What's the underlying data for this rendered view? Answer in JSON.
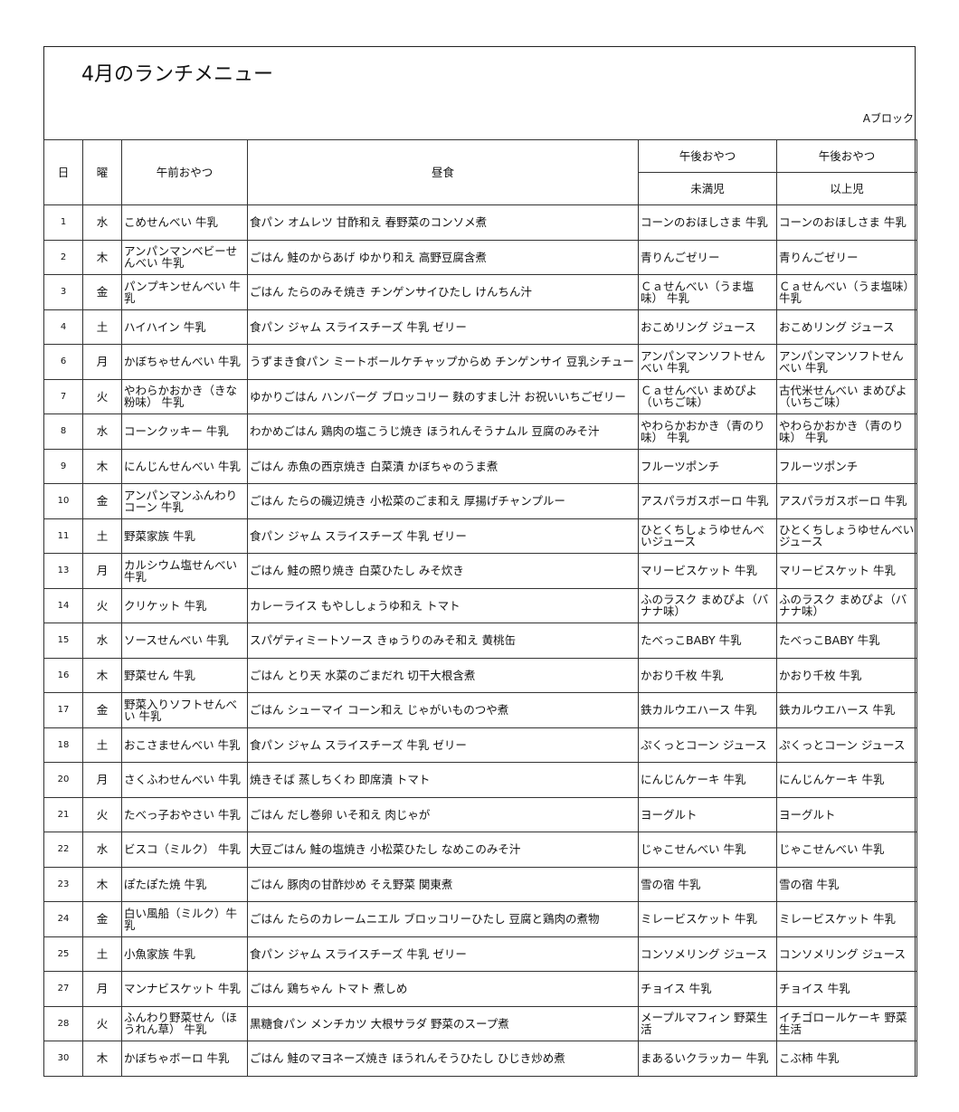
{
  "title": "4月のランチメニュー",
  "block": "Aブロック",
  "headers": {
    "day": "日",
    "weekday": "曜",
    "morning_snack": "午前おやつ",
    "lunch": "昼食",
    "afternoon_snack_1": "午後おやつ",
    "afternoon_snack_1_sub": "未満児",
    "afternoon_snack_2": "午後おやつ",
    "afternoon_snack_2_sub": "以上児"
  },
  "rows": [
    {
      "day": "1",
      "wd": "水",
      "am": "こめせんべい 牛乳",
      "lunch": "食パン オムレツ 甘酢和え 春野菜のコンソメ煮",
      "pm1": "コーンのおほしさま 牛乳",
      "pm2": "コーンのおほしさま 牛乳"
    },
    {
      "day": "2",
      "wd": "木",
      "am": "アンパンマンベビーせんべい 牛乳",
      "lunch": "ごはん 鮭のからあげ ゆかり和え 高野豆腐含煮",
      "pm1": "青りんごゼリー",
      "pm2": "青りんごゼリー"
    },
    {
      "day": "3",
      "wd": "金",
      "am": "パンプキンせんべい 牛乳",
      "lunch": "ごはん たらのみそ焼き チンゲンサイひたし けんちん汁",
      "pm1": "Ｃａせんべい（うま塩味） 牛乳",
      "pm2": "Ｃａせんべい（うま塩味） 牛乳"
    },
    {
      "day": "4",
      "wd": "土",
      "am": "ハイハイン 牛乳",
      "lunch": "食パン ジャム スライスチーズ 牛乳 ゼリー",
      "pm1": "おこめリング ジュース",
      "pm2": "おこめリング ジュース"
    },
    {
      "day": "6",
      "wd": "月",
      "am": "かぼちゃせんべい 牛乳",
      "lunch": "うずまき食パン ミートボールケチャップからめ チンゲンサイ 豆乳シチュー",
      "pm1": "アンパンマンソフトせんべい 牛乳",
      "pm2": "アンパンマンソフトせんべい 牛乳"
    },
    {
      "day": "7",
      "wd": "火",
      "am": "やわらかおかき（きな粉味） 牛乳",
      "lunch": "ゆかりごはん ハンバーグ ブロッコリー 麩のすまし汁 お祝いいちごゼリー",
      "pm1": "Ｃａせんべい まめぴよ（いちご味）",
      "pm2": "古代米せんべい まめぴよ（いちご味）"
    },
    {
      "day": "8",
      "wd": "水",
      "am": "コーンクッキー 牛乳",
      "lunch": "わかめごはん 鶏肉の塩こうじ焼き ほうれんそうナムル 豆腐のみそ汁",
      "pm1": "やわらかおかき（青のり味） 牛乳",
      "pm2": "やわらかおかき（青のり味） 牛乳"
    },
    {
      "day": "9",
      "wd": "木",
      "am": "にんじんせんべい 牛乳",
      "lunch": "ごはん 赤魚の西京焼き 白菜漬 かぼちゃのうま煮",
      "pm1": "フルーツポンチ",
      "pm2": "フルーツポンチ"
    },
    {
      "day": "10",
      "wd": "金",
      "am": "アンパンマンふんわりコーン 牛乳",
      "lunch": "ごはん たらの磯辺焼き 小松菜のごま和え 厚揚げチャンプルー",
      "pm1": "アスパラガスボーロ 牛乳",
      "pm2": "アスパラガスボーロ 牛乳"
    },
    {
      "day": "11",
      "wd": "土",
      "am": "野菜家族 牛乳",
      "lunch": "食パン ジャム スライスチーズ 牛乳 ゼリー",
      "pm1": "ひとくちしょうゆせんべいジュース",
      "pm2": "ひとくちしょうゆせんべいジュース"
    },
    {
      "day": "13",
      "wd": "月",
      "am": "カルシウム塩せんべい牛乳",
      "lunch": "ごはん 鮭の照り焼き 白菜ひたし みそ炊き",
      "pm1": "マリービスケット 牛乳",
      "pm2": "マリービスケット 牛乳"
    },
    {
      "day": "14",
      "wd": "火",
      "am": "クリケット 牛乳",
      "lunch": "カレーライス もやししょうゆ和え トマト",
      "pm1": "ふのラスク まめぴよ（バナナ味）",
      "pm2": "ふのラスク まめぴよ（バナナ味）"
    },
    {
      "day": "15",
      "wd": "水",
      "am": "ソースせんべい 牛乳",
      "lunch": "スパゲティミートソース きゅうりのみそ和え 黄桃缶",
      "pm1": "たべっこBABY 牛乳",
      "pm2": "たべっこBABY 牛乳"
    },
    {
      "day": "16",
      "wd": "木",
      "am": "野菜せん 牛乳",
      "lunch": "ごはん とり天 水菜のごまだれ 切干大根含煮",
      "pm1": "かおり千枚 牛乳",
      "pm2": "かおり千枚 牛乳"
    },
    {
      "day": "17",
      "wd": "金",
      "am": "野菜入りソフトせんべい 牛乳",
      "lunch": "ごはん シューマイ コーン和え じゃがいものつや煮",
      "pm1": "鉄カルウエハース 牛乳",
      "pm2": "鉄カルウエハース 牛乳"
    },
    {
      "day": "18",
      "wd": "土",
      "am": "おこさませんべい 牛乳",
      "lunch": "食パン ジャム スライスチーズ 牛乳 ゼリー",
      "pm1": "ぷくっとコーン ジュース",
      "pm2": "ぷくっとコーン ジュース"
    },
    {
      "day": "20",
      "wd": "月",
      "am": "さくふわせんべい 牛乳",
      "lunch": "焼きそば 蒸しちくわ 即席漬 トマト",
      "pm1": "にんじんケーキ 牛乳",
      "pm2": "にんじんケーキ 牛乳"
    },
    {
      "day": "21",
      "wd": "火",
      "am": "たべっ子おやさい 牛乳",
      "lunch": "ごはん だし巻卵 いそ和え 肉じゃが",
      "pm1": "ヨーグルト",
      "pm2": "ヨーグルト"
    },
    {
      "day": "22",
      "wd": "水",
      "am": "ビスコ（ミルク） 牛乳",
      "lunch": "大豆ごはん 鮭の塩焼き 小松菜ひたし なめこのみそ汁",
      "pm1": "じゃこせんべい 牛乳",
      "pm2": "じゃこせんべい 牛乳"
    },
    {
      "day": "23",
      "wd": "木",
      "am": "ぽたぽた焼 牛乳",
      "lunch": "ごはん 豚肉の甘酢炒め そえ野菜 関東煮",
      "pm1": "雪の宿 牛乳",
      "pm2": "雪の宿 牛乳"
    },
    {
      "day": "24",
      "wd": "金",
      "am": "白い風船（ミルク）牛乳",
      "lunch": "ごはん たらのカレームニエル ブロッコリーひたし 豆腐と鶏肉の煮物",
      "pm1": "ミレービスケット 牛乳",
      "pm2": "ミレービスケット 牛乳"
    },
    {
      "day": "25",
      "wd": "土",
      "am": "小魚家族 牛乳",
      "lunch": "食パン ジャム スライスチーズ 牛乳 ゼリー",
      "pm1": "コンソメリング ジュース",
      "pm2": "コンソメリング ジュース"
    },
    {
      "day": "27",
      "wd": "月",
      "am": "マンナビスケット 牛乳",
      "lunch": "ごはん 鶏ちゃん トマト 煮しめ",
      "pm1": "チョイス 牛乳",
      "pm2": "チョイス 牛乳"
    },
    {
      "day": "28",
      "wd": "火",
      "am": "ふんわり野菜せん（ほうれん草） 牛乳",
      "lunch": "黒糖食パン メンチカツ 大根サラダ 野菜のスープ煮",
      "pm1": "メープルマフィン 野菜生活",
      "pm2": "イチゴロールケーキ 野菜生活"
    },
    {
      "day": "30",
      "wd": "木",
      "am": "かぼちゃボーロ 牛乳",
      "lunch": "ごはん 鮭のマヨネーズ焼き ほうれんそうひたし ひじき炒め煮",
      "pm1": "まあるいクラッカー 牛乳",
      "pm2": "こぶ柿 牛乳"
    }
  ]
}
